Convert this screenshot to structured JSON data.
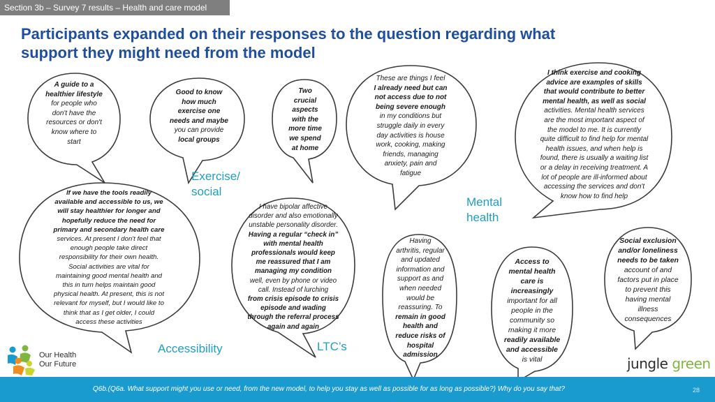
{
  "header": {
    "section_tag": "Section 3b – Survey 7 results – Health and care model",
    "title_line1": "Participants expanded on their responses to the question regarding what",
    "title_line2": "support they might need from the model"
  },
  "themes": {
    "exercise_line1": "Exercise/",
    "exercise_line2": "social",
    "mental_line1": "Mental",
    "mental_line2": "health",
    "accessibility": "Accessibility",
    "ltcs": "LTC’s"
  },
  "quotes": {
    "q1": [
      "A guide to a",
      "healthier lifestyle",
      "for people who",
      "don't have the",
      "resources or don't",
      "know where to",
      "start"
    ],
    "q2": [
      "Good to know",
      "how much",
      "exercise one",
      "needs and maybe",
      "you can provide",
      "local groups"
    ],
    "q3": [
      "Two",
      "crucial",
      "aspects",
      "with the",
      "more time",
      "we spend",
      "at home"
    ],
    "q4": [
      "These are things I feel",
      "I already need but can",
      "not access due to not",
      "being severe enough",
      "in my conditions but",
      "struggle daily in every",
      "day activities is house",
      "work, cooking, making",
      "friends, managing",
      "anxiety, pain and",
      "fatigue"
    ],
    "q5": [
      "I think exercise and cooking",
      "advice are examples of skills",
      "that would contribute to better",
      "mental health, as well as social",
      "activities. Mental health services",
      "are the most important aspect of",
      "the model to me. It is currently",
      "quite difficult to find help for mental",
      "health issues, and when help is",
      "found, there is usually a waiting list",
      "or a delay in receiving treatment. A",
      "lot of people are ill-informed about",
      "accessing the services and don't",
      "know how to find help"
    ],
    "q6": [
      "If we have the tools readily",
      "available and accessible to us, we",
      "will stay healthier for longer and",
      "hopefully reduce the need for",
      "primary and secondary health care",
      "services. At present I don't feel that",
      "enough people take direct",
      "responsibility for their own health.",
      "Social activities are vital for",
      "maintaining good mental health and",
      "this in turn  helps maintain good",
      "physical health. At present, this is not",
      "relevant for myself, but I would like to",
      "think that as I get older, I could",
      "access these activities"
    ],
    "q7": [
      "I have bipolar affective",
      "disorder and also emotionally",
      "unstable personality disorder.",
      "Having a regular “check in”",
      "with mental health",
      "professionals would keep",
      "me reassured that I am",
      "managing my condition",
      "well, even by phone or video",
      "call.  Instead of lurching",
      "from crisis episode to crisis",
      "episode and wading",
      "through the referral process",
      "again and again"
    ],
    "q8": [
      "Having",
      "arthritis, regular",
      "and updated",
      "information and",
      "support as and",
      "when needed",
      "would be",
      "reassuring. To",
      "remain in good",
      "health and",
      "reduce risks of",
      "hospital",
      "admission"
    ],
    "q9": [
      "Access to",
      "mental health",
      "care is",
      "increasingly",
      "important for all",
      "people in the",
      "community so",
      "making it more",
      "readily available",
      "and accessible",
      "is vital"
    ],
    "q10": [
      "Social exclusion",
      "and/or loneliness",
      "needs to be taken",
      "account of and",
      "factors put in place",
      "to prevent this",
      "having mental",
      "illness",
      "consequences"
    ]
  },
  "logos": {
    "ohof_line1": "Our Health",
    "ohof_line2": "Our Future",
    "jg_part1": "jungle",
    "jg_part2": " green"
  },
  "footer": {
    "note": "Q6b.(Q6a. What support might you use or need, from the new model, to help you stay as well as possible for as long as possible?) Why do you say that?",
    "page_number": "28"
  },
  "colors": {
    "title_blue": "#1f4e9c",
    "theme_teal": "#1e9fbf",
    "footer_blue": "#1a9bcf",
    "section_grey": "#7f7f7f"
  }
}
